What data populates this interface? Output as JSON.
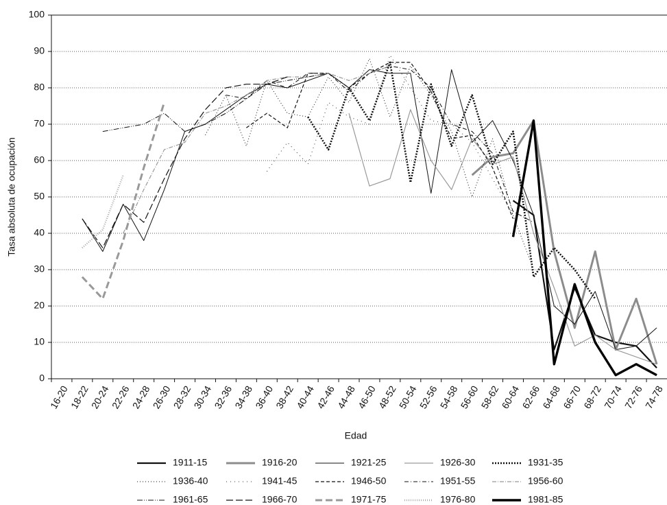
{
  "chart_data": {
    "type": "line",
    "x_label": "Edad",
    "y_label": "Tasa absoluta de ocupación",
    "categories": [
      "16-20",
      "18-22",
      "20-24",
      "22-26",
      "24-28",
      "26-30",
      "28-32",
      "30-34",
      "32-36",
      "34-38",
      "36-40",
      "38-42",
      "40-44",
      "42-46",
      "44-48",
      "46-50",
      "48-52",
      "50-54",
      "52-56",
      "54-58",
      "56-60",
      "58-62",
      "60-64",
      "62-66",
      "64-68",
      "66-70",
      "68-72",
      "70-74",
      "72-76",
      "74-78"
    ],
    "ylim": [
      0,
      100
    ],
    "yticks": [
      0,
      10,
      20,
      30,
      40,
      50,
      60,
      70,
      80,
      90,
      100
    ],
    "grid": true,
    "series": [
      {
        "name": "1911-15",
        "color": "#111111",
        "width": 2.2,
        "dash": "none",
        "values": [
          null,
          null,
          null,
          null,
          null,
          null,
          null,
          null,
          null,
          null,
          null,
          null,
          null,
          null,
          null,
          null,
          null,
          null,
          null,
          null,
          null,
          null,
          49,
          45,
          8,
          25,
          12,
          10,
          9,
          3
        ]
      },
      {
        "name": "1916-20",
        "color": "#8c8c8c",
        "width": 3,
        "dash": "none",
        "values": [
          null,
          null,
          null,
          null,
          null,
          null,
          null,
          null,
          null,
          null,
          null,
          null,
          null,
          null,
          null,
          null,
          null,
          null,
          null,
          null,
          56,
          61,
          62,
          71,
          35,
          14,
          35,
          8,
          22,
          4
        ]
      },
      {
        "name": "1921-25",
        "color": "#111111",
        "width": 1,
        "dash": "none",
        "values": [
          null,
          44,
          35,
          48,
          38,
          52,
          68,
          70,
          74,
          78,
          81,
          80,
          82,
          84,
          80,
          85,
          84,
          84,
          51,
          85,
          65,
          71,
          60,
          45,
          20,
          15,
          24,
          8,
          9,
          14
        ]
      },
      {
        "name": "1926-30",
        "color": "#9a9a9a",
        "width": 1.2,
        "dash": "none",
        "values": [
          null,
          null,
          null,
          null,
          null,
          null,
          null,
          null,
          null,
          null,
          null,
          null,
          null,
          null,
          73,
          53,
          55,
          74,
          60,
          52,
          66,
          59,
          61,
          40,
          25,
          9,
          12,
          8,
          6,
          4
        ]
      },
      {
        "name": "1931-35",
        "color": "#111111",
        "width": 2.6,
        "dash": "2,2",
        "values": [
          null,
          null,
          null,
          null,
          null,
          null,
          null,
          null,
          null,
          null,
          null,
          null,
          72,
          63,
          80,
          71,
          87,
          54,
          81,
          64,
          78,
          59,
          68,
          28,
          36,
          30,
          22,
          null,
          null,
          null
        ]
      },
      {
        "name": "1936-40",
        "color": "#111111",
        "width": 1,
        "dash": "1,3",
        "values": [
          null,
          null,
          null,
          null,
          null,
          null,
          null,
          67,
          78,
          64,
          82,
          73,
          72,
          83,
          76,
          88,
          72,
          86,
          78,
          68,
          50,
          66,
          45,
          30,
          null,
          null,
          null,
          null,
          null,
          null
        ]
      },
      {
        "name": "1941-45",
        "color": "#333333",
        "width": 1,
        "dash": "1,5",
        "values": [
          null,
          null,
          null,
          null,
          null,
          null,
          null,
          null,
          null,
          null,
          57,
          65,
          59,
          76,
          72,
          70,
          89,
          80,
          71,
          70,
          65,
          55,
          45,
          null,
          null,
          null,
          null,
          null,
          null,
          null
        ]
      },
      {
        "name": "1946-50",
        "color": "#111111",
        "width": 1.2,
        "dash": "5,3",
        "values": [
          null,
          null,
          null,
          null,
          null,
          null,
          null,
          null,
          null,
          69,
          73,
          69,
          84,
          84,
          80,
          84,
          87,
          87,
          79,
          66,
          67,
          58,
          44,
          null,
          null,
          null,
          null,
          null,
          null,
          null
        ]
      },
      {
        "name": "1951-55",
        "color": "#111111",
        "width": 1,
        "dash": "6,3,1,3",
        "values": [
          null,
          null,
          null,
          null,
          null,
          null,
          null,
          null,
          78,
          77,
          82,
          80,
          84,
          84,
          79,
          84,
          86,
          85,
          80,
          70,
          68,
          62,
          46,
          43,
          null,
          null,
          null,
          null,
          null,
          null
        ]
      },
      {
        "name": "1956-60",
        "color": "#999999",
        "width": 1.2,
        "dash": "6,2,1,2",
        "values": [
          null,
          null,
          null,
          40,
          52,
          63,
          65,
          73,
          75,
          78,
          82,
          83,
          83,
          84,
          82,
          84,
          86,
          null,
          null,
          null,
          null,
          null,
          null,
          null,
          null,
          null,
          null,
          null,
          null,
          null
        ]
      },
      {
        "name": "1961-65",
        "color": "#111111",
        "width": 1,
        "dash": "8,2,1,2,1,2",
        "values": [
          null,
          null,
          68,
          69,
          70,
          73,
          68,
          70,
          73,
          77,
          81,
          82,
          83,
          84,
          null,
          null,
          null,
          null,
          null,
          null,
          null,
          null,
          null,
          null,
          null,
          null,
          null,
          null,
          null,
          null
        ]
      },
      {
        "name": "1966-70",
        "color": "#111111",
        "width": 1.2,
        "dash": "10,4",
        "values": [
          null,
          44,
          36,
          48,
          43,
          55,
          66,
          74,
          80,
          81,
          81,
          83,
          null,
          null,
          null,
          null,
          null,
          null,
          null,
          null,
          null,
          null,
          null,
          null,
          null,
          null,
          null,
          null,
          null,
          null
        ]
      },
      {
        "name": "1971-75",
        "color": "#999999",
        "width": 3,
        "dash": "10,5",
        "values": [
          null,
          28,
          22,
          38,
          58,
          76,
          null,
          null,
          null,
          null,
          null,
          null,
          null,
          null,
          null,
          null,
          null,
          null,
          null,
          null,
          null,
          null,
          null,
          null,
          null,
          null,
          null,
          null,
          null,
          null
        ]
      },
      {
        "name": "1976-80",
        "color": "#aaaaaa",
        "width": 2.4,
        "dash": "1,2",
        "values": [
          null,
          36,
          41,
          56,
          null,
          null,
          null,
          null,
          null,
          null,
          null,
          null,
          null,
          null,
          null,
          null,
          null,
          null,
          null,
          null,
          null,
          null,
          null,
          null,
          null,
          null,
          null,
          null,
          null,
          null
        ]
      },
      {
        "name": "1981-85",
        "color": "#000000",
        "width": 3.4,
        "dash": "none",
        "values": [
          null,
          null,
          null,
          null,
          null,
          null,
          null,
          null,
          null,
          null,
          null,
          null,
          null,
          null,
          null,
          null,
          null,
          null,
          null,
          null,
          null,
          null,
          39,
          71,
          4,
          26,
          10,
          1,
          4,
          1
        ]
      }
    ]
  }
}
